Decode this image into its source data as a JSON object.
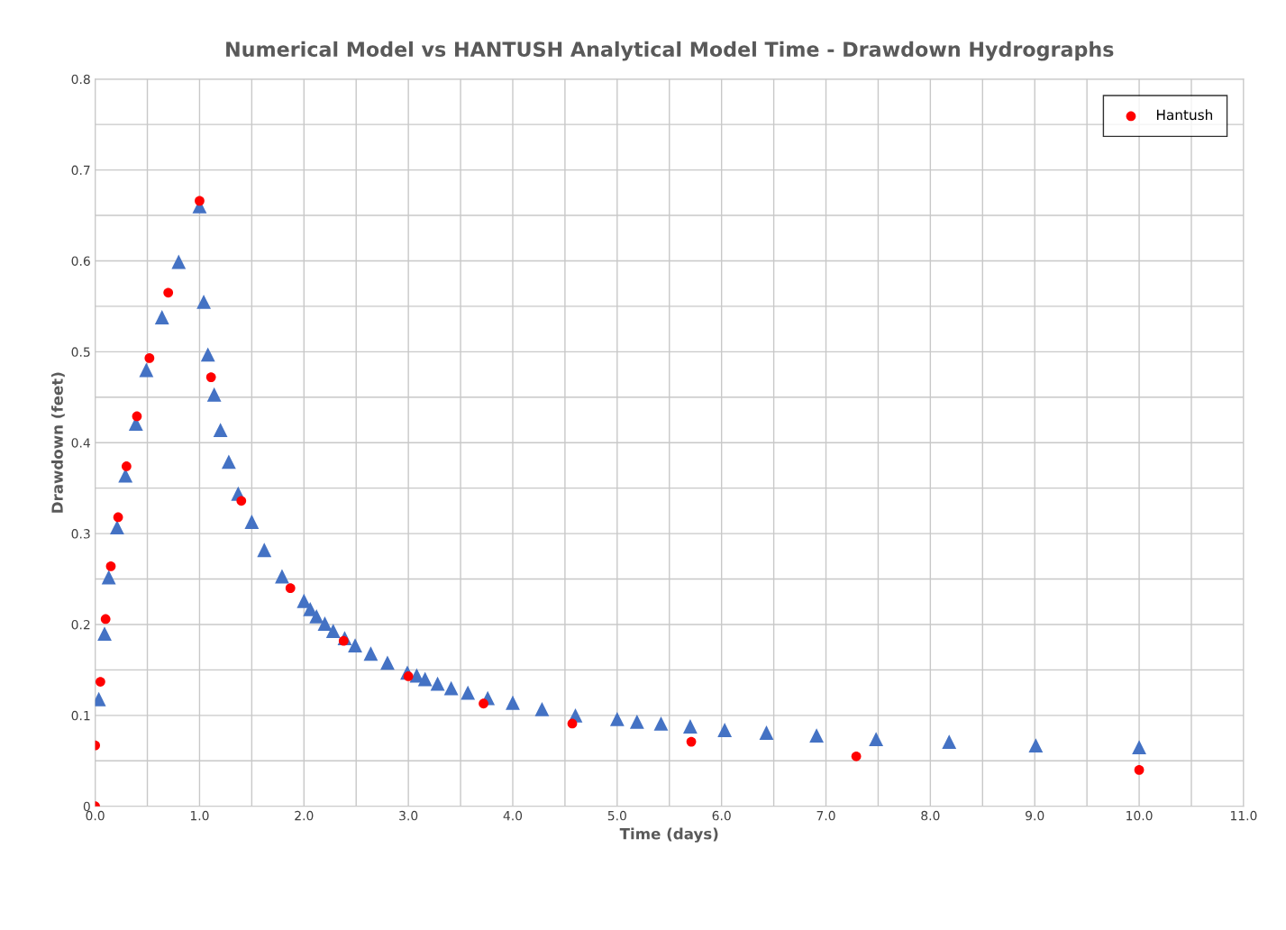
{
  "chart_data": {
    "type": "scatter",
    "title": "Numerical Model vs HANTUSH Analytical Model Time - Drawdown Hydrographs",
    "xlabel": "Time (days)",
    "ylabel": "Drawdown (feet)",
    "xlim": [
      0,
      11
    ],
    "ylim": [
      0,
      0.8
    ],
    "xticks": [
      {
        "value": 0,
        "label": "0.0"
      },
      {
        "value": 0.5,
        "label": null
      },
      {
        "value": 1,
        "label": "1.0"
      },
      {
        "value": 1.5,
        "label": null
      },
      {
        "value": 2,
        "label": "2.0"
      },
      {
        "value": 2.5,
        "label": null
      },
      {
        "value": 3,
        "label": "3.0"
      },
      {
        "value": 3.5,
        "label": null
      },
      {
        "value": 4,
        "label": "4.0"
      },
      {
        "value": 4.5,
        "label": null
      },
      {
        "value": 5,
        "label": "5.0"
      },
      {
        "value": 5.5,
        "label": null
      },
      {
        "value": 6,
        "label": "6.0"
      },
      {
        "value": 6.5,
        "label": null
      },
      {
        "value": 7,
        "label": "7.0"
      },
      {
        "value": 7.5,
        "label": null
      },
      {
        "value": 8,
        "label": "8.0"
      },
      {
        "value": 8.5,
        "label": null
      },
      {
        "value": 9,
        "label": "9.0"
      },
      {
        "value": 9.5,
        "label": null
      },
      {
        "value": 10,
        "label": "10.0"
      },
      {
        "value": 10.5,
        "label": null
      },
      {
        "value": 11,
        "label": "11.0"
      }
    ],
    "yticks": [
      0,
      {
        "value": 0.05,
        "label": null
      },
      0.1,
      {
        "value": 0.15,
        "label": null
      },
      0.2,
      {
        "value": 0.25,
        "label": null
      },
      0.3,
      {
        "value": 0.35,
        "label": null
      },
      0.4,
      {
        "value": 0.45,
        "label": null
      },
      0.5,
      {
        "value": 0.55,
        "label": null
      },
      0.6,
      {
        "value": 0.65,
        "label": null
      },
      0.7,
      {
        "value": 0.75,
        "label": null
      },
      0.8
    ],
    "grid": true,
    "legend": "top right",
    "series": [
      {
        "color": "#4472c4",
        "marker": "triangle",
        "x": [
          0.035,
          0.09,
          0.13,
          0.21,
          0.29,
          0.39,
          0.49,
          0.64,
          0.8,
          1.0,
          1.04,
          1.08,
          1.14,
          1.2,
          1.28,
          1.37,
          1.5,
          1.62,
          1.79,
          2.0,
          2.06,
          2.12,
          2.2,
          2.28,
          2.39,
          2.49,
          2.64,
          2.8,
          2.99,
          3.08,
          3.16,
          3.28,
          3.41,
          3.57,
          3.76,
          4.0,
          4.28,
          4.6,
          5.0,
          5.19,
          5.42,
          5.7,
          6.03,
          6.43,
          6.91,
          7.48,
          8.18,
          9.01,
          10.0
        ],
        "values": [
          0.118,
          0.19,
          0.252,
          0.307,
          0.364,
          0.421,
          0.48,
          0.538,
          0.599,
          0.66,
          0.555,
          0.497,
          0.453,
          0.414,
          0.379,
          0.344,
          0.313,
          0.282,
          0.253,
          0.226,
          0.217,
          0.209,
          0.201,
          0.193,
          0.185,
          0.177,
          0.168,
          0.158,
          0.147,
          0.144,
          0.14,
          0.135,
          0.13,
          0.125,
          0.119,
          0.114,
          0.107,
          0.1,
          0.096,
          0.093,
          0.091,
          0.088,
          0.084,
          0.081,
          0.078,
          0.074,
          0.071,
          0.067,
          0.065
        ]
      },
      {
        "name": "Hantush",
        "color": "#ff0000",
        "marker": "circle",
        "x": [
          0,
          0,
          0.05,
          0.1,
          0.15,
          0.22,
          0.3,
          0.4,
          0.52,
          0.7,
          1.0,
          1.11,
          1.4,
          1.87,
          2.38,
          3.0,
          3.72,
          4.57,
          5.71,
          7.29,
          10.0
        ],
        "values": [
          0,
          0.067,
          0.137,
          0.206,
          0.264,
          0.318,
          0.374,
          0.429,
          0.493,
          0.565,
          0.666,
          0.472,
          0.336,
          0.24,
          0.182,
          0.143,
          0.113,
          0.091,
          0.071,
          0.055,
          0.04
        ]
      }
    ]
  }
}
